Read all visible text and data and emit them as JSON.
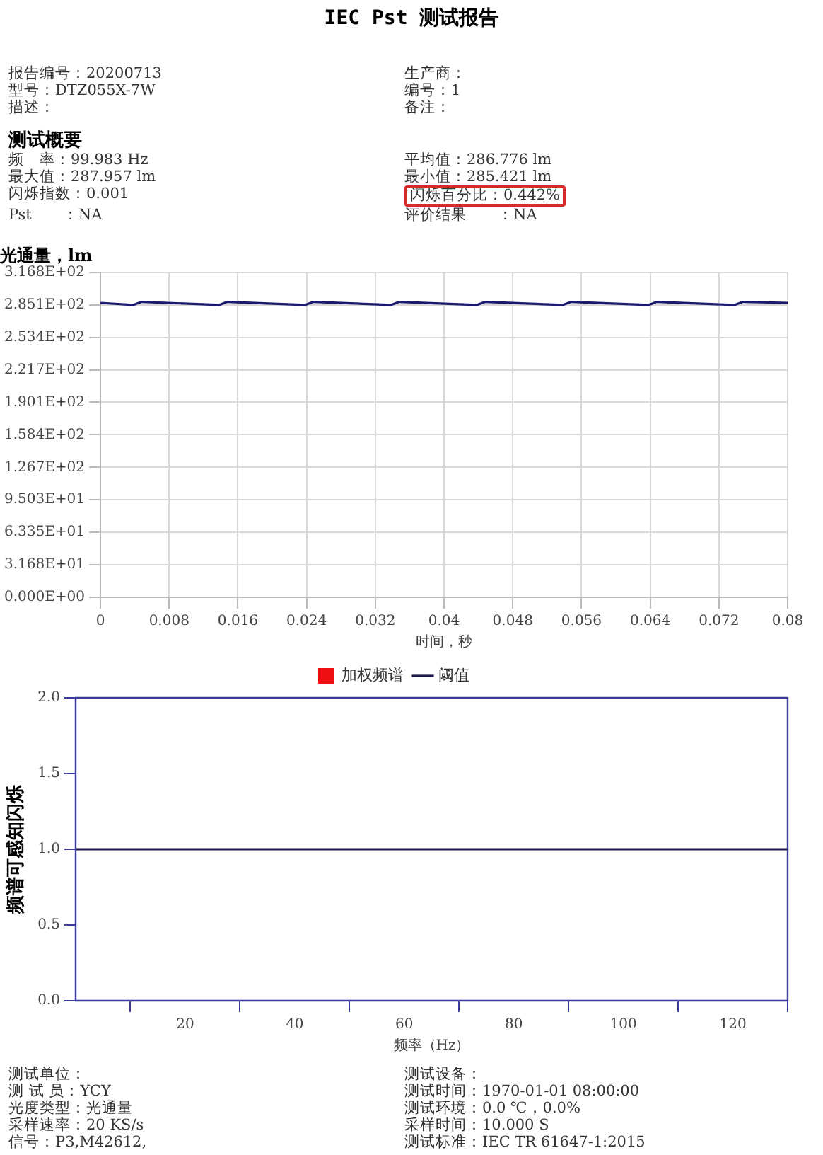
{
  "chart_data": [
    {
      "type": "line",
      "title": "IEC Pst 测试报告",
      "subtitle": "光通量，lm",
      "xlabel": "时间，秒",
      "annotations": [
        "报告编号：20200713",
        "生产商：",
        "型号：DTZ055X-7W",
        "编号：1",
        "描述：",
        "备注：",
        "测试概要",
        "频　率：99.983 Hz",
        "平均值：286.776 lm",
        "最大值：287.957 lm",
        "最小值：285.421 lm",
        "闪烁指数：0.001",
        "闪烁百分比：0.442%",
        "Pst　　：NA",
        "评价结果　　：NA"
      ],
      "series": [
        {
          "color": "#1a1a6e",
          "x": [
            0,
            0.0038,
            0.0048,
            0.0138,
            0.0148,
            0.0238,
            0.0248,
            0.0338,
            0.0348,
            0.0438,
            0.0448,
            0.0538,
            0.0548,
            0.0638,
            0.0648,
            0.0738,
            0.0748,
            0.08
          ],
          "values": [
            287,
            285,
            288,
            285,
            288,
            285,
            288,
            285,
            288,
            285,
            288,
            285,
            288,
            285,
            288,
            285,
            288,
            287
          ]
        }
      ],
      "xlim": [
        0,
        0.08
      ],
      "xticks": [
        0,
        0.008,
        0.016,
        0.024,
        0.032,
        0.04,
        0.048,
        0.056,
        0.064,
        0.072,
        0.08
      ],
      "ylim": [
        0,
        316.8
      ],
      "yticks": [
        {
          "value": 0,
          "label": "0.000E+00"
        },
        {
          "value": 31.68,
          "label": "3.168E+01"
        },
        {
          "value": 63.35,
          "label": "6.335E+01"
        },
        {
          "value": 95.03,
          "label": "9.503E+01"
        },
        {
          "value": 126.7,
          "label": "1.267E+02"
        },
        {
          "value": 158.4,
          "label": "1.584E+02"
        },
        {
          "value": 190.1,
          "label": "1.901E+02"
        },
        {
          "value": 221.7,
          "label": "2.217E+02"
        },
        {
          "value": 253.4,
          "label": "2.534E+02"
        },
        {
          "value": 285.1,
          "label": "2.851E+02"
        },
        {
          "value": 316.8,
          "label": "3.168E+02"
        }
      ],
      "grid": true
    },
    {
      "type": "line",
      "xlabel": "频率（Hz）",
      "ylabel": "频谱可感知闪烁",
      "annotations": [
        "测试单位：",
        "测试设备：",
        "测 试 员：YCY",
        "测试时间：1970-01-01 08:00:00",
        "光度类型：光通量",
        "测试环境：0.0 ℃，0.0%",
        "采样速率：20 KS/s",
        "采样时间：10.000 S",
        "信号：P3,M42612,",
        "测试标准：IEC TR 61647-1:2015"
      ],
      "series": [
        {
          "name": "加权频谱",
          "type": "bar",
          "color": "#ee1111"
        },
        {
          "name": "阈值",
          "type": "line",
          "color": "#1a1a4a",
          "x": [
            0,
            130
          ],
          "values": [
            1,
            1
          ]
        }
      ],
      "xlim": [
        0,
        130
      ],
      "xticks": [
        20,
        40,
        60,
        80,
        100,
        120
      ],
      "ylim": [
        0,
        2
      ],
      "yticks": [
        {
          "value": 0,
          "label": "0.0"
        },
        {
          "value": 0.5,
          "label": "0.5"
        },
        {
          "value": 1,
          "label": "1.0"
        },
        {
          "value": 1.5,
          "label": "1.5"
        },
        {
          "value": 2,
          "label": "2.0"
        }
      ],
      "grid": false,
      "legend": "top"
    }
  ]
}
